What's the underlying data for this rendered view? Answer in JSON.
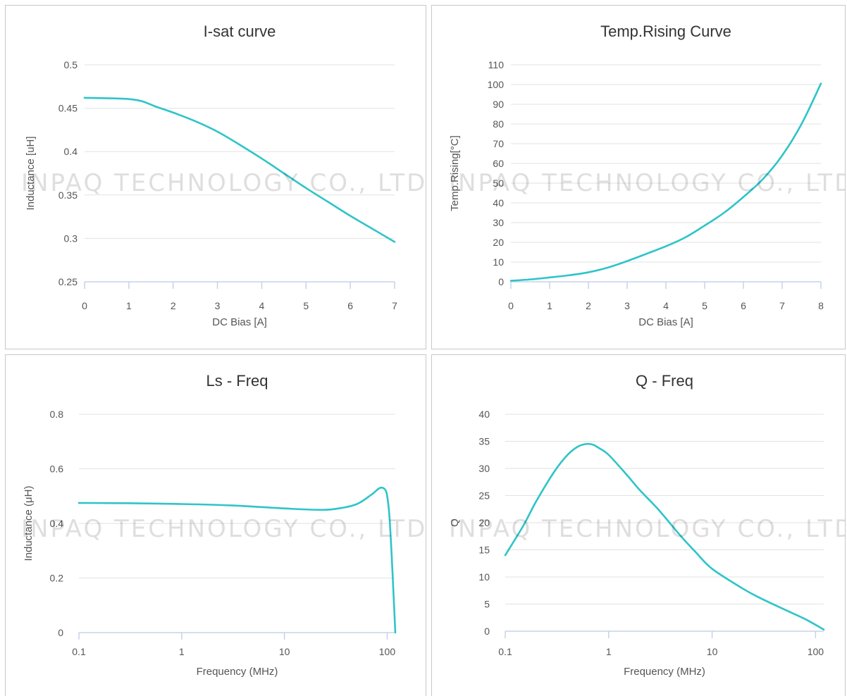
{
  "watermark_text": "INPAQ TECHNOLOGY CO., LTD.",
  "colors": {
    "line": "#2ec4c9",
    "grid": "#e2e2e2",
    "axis": "#c5d3e8",
    "text": "#555555",
    "title": "#333333",
    "panel_border": "#c8c8c8"
  },
  "chart_data": [
    {
      "type": "line",
      "title": "I-sat curve",
      "xlabel": "DC Bias [A]",
      "ylabel": "Inductance [uH]",
      "xlim": [
        0,
        7
      ],
      "ylim": [
        0.25,
        0.5
      ],
      "xticks": [
        "0",
        "1",
        "2",
        "3",
        "4",
        "5",
        "6",
        "7"
      ],
      "yticks": [
        "0.25",
        "0.3",
        "0.35",
        "0.4",
        "0.45",
        "0.5"
      ],
      "x_scale": "linear",
      "grid": true,
      "series": [
        {
          "x": [
            0,
            0.5,
            1.0,
            1.3,
            1.6,
            2.0,
            2.5,
            3.0,
            3.5,
            4.0,
            4.5,
            5.0,
            5.5,
            6.0,
            6.5,
            7.0
          ],
          "y": [
            0.462,
            0.4615,
            0.4605,
            0.458,
            0.452,
            0.445,
            0.435,
            0.423,
            0.408,
            0.392,
            0.375,
            0.358,
            0.342,
            0.326,
            0.311,
            0.296
          ]
        }
      ]
    },
    {
      "type": "line",
      "title": "Temp.Rising Curve",
      "xlabel": "DC Bias [A]",
      "ylabel": "Temp.Rising[°C]",
      "xlim": [
        0,
        8
      ],
      "ylim": [
        0,
        110
      ],
      "xticks": [
        "0",
        "1",
        "2",
        "3",
        "4",
        "5",
        "6",
        "7",
        "8"
      ],
      "yticks": [
        "0",
        "10",
        "20",
        "30",
        "40",
        "50",
        "60",
        "70",
        "80",
        "90",
        "100",
        "110"
      ],
      "x_scale": "linear",
      "grid": true,
      "series": [
        {
          "x": [
            0,
            0.5,
            1.0,
            1.5,
            2.0,
            2.5,
            3.0,
            3.5,
            4.0,
            4.5,
            5.0,
            5.5,
            6.0,
            6.5,
            7.0,
            7.5,
            8.0
          ],
          "y": [
            0.5,
            1.2,
            2.2,
            3.3,
            4.8,
            7.2,
            10.5,
            14.2,
            18.0,
            22.5,
            28.5,
            35.0,
            43.0,
            52.0,
            64.0,
            80.0,
            100.5
          ]
        }
      ]
    },
    {
      "type": "line",
      "title": "Ls - Freq",
      "xlabel": "Frequency (MHz)",
      "ylabel": "Inductance (μH)",
      "xlim": [
        0.1,
        120
      ],
      "ylim": [
        0,
        0.8
      ],
      "xticks": [
        "0.1",
        "1",
        "10",
        "100"
      ],
      "yticks": [
        "0",
        "0.2",
        "0.4",
        "0.6",
        "0.8"
      ],
      "x_scale": "log",
      "grid": true,
      "series": [
        {
          "x": [
            0.1,
            0.3,
            1,
            3,
            10,
            20,
            30,
            50,
            70,
            85,
            95,
            100,
            105,
            110,
            115,
            120
          ],
          "y": [
            0.475,
            0.474,
            0.471,
            0.466,
            0.455,
            0.45,
            0.452,
            0.47,
            0.505,
            0.53,
            0.525,
            0.5,
            0.43,
            0.3,
            0.15,
            0.0
          ]
        }
      ]
    },
    {
      "type": "line",
      "title": "Q - Freq",
      "xlabel": "Frequency (MHz)",
      "ylabel": "Q",
      "xlim": [
        0.1,
        120
      ],
      "ylim": [
        0,
        40
      ],
      "xticks": [
        "0.1",
        "1",
        "10",
        "100"
      ],
      "yticks": [
        "0",
        "5",
        "10",
        "15",
        "20",
        "25",
        "30",
        "35",
        "40"
      ],
      "x_scale": "log",
      "grid": true,
      "series": [
        {
          "x": [
            0.1,
            0.15,
            0.2,
            0.3,
            0.4,
            0.5,
            0.6,
            0.7,
            0.8,
            1.0,
            1.5,
            2.0,
            3.0,
            5.0,
            7.0,
            10,
            20,
            30,
            50,
            80,
            120
          ],
          "y": [
            14.0,
            19.5,
            24.0,
            29.5,
            32.5,
            34.0,
            34.5,
            34.4,
            33.8,
            32.5,
            28.8,
            26.0,
            22.5,
            17.5,
            14.5,
            11.5,
            7.8,
            6.0,
            4.0,
            2.2,
            0.3
          ]
        }
      ]
    }
  ]
}
